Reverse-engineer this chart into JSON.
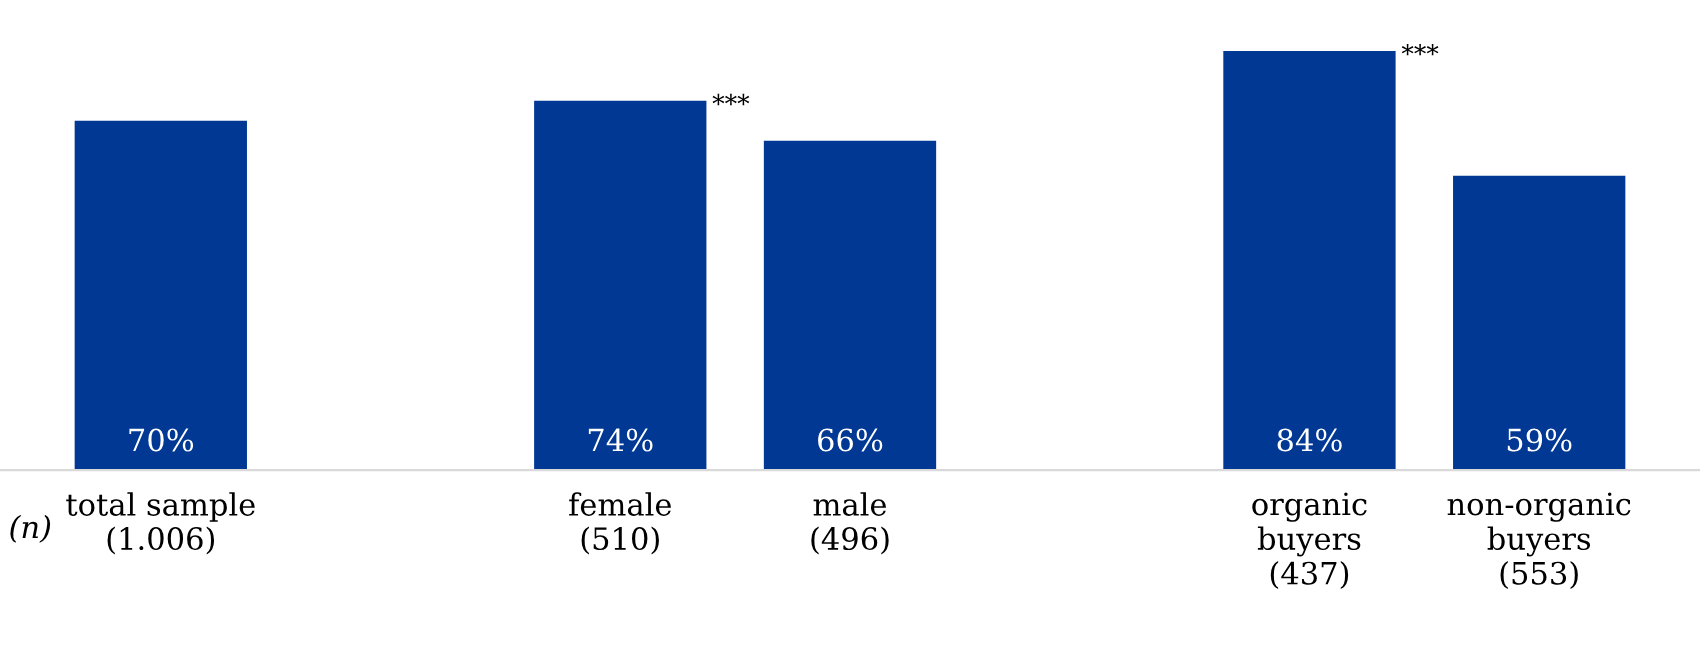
{
  "chart_data": {
    "type": "bar",
    "categories": [
      "total sample\n(1.006)",
      null,
      "female\n(510)",
      "male\n(496)",
      null,
      "organic\nbuyers\n(437)",
      "non-organic\nbuyers\n(553)"
    ],
    "values": [
      70,
      null,
      74,
      66,
      null,
      84,
      59
    ],
    "value_labels": [
      "70%",
      null,
      "74%",
      "66%",
      null,
      "84%",
      "59%"
    ],
    "color": "#003893",
    "annotations": [
      "***",
      "***",
      "(n)"
    ],
    "grid": false,
    "legend": false
  }
}
